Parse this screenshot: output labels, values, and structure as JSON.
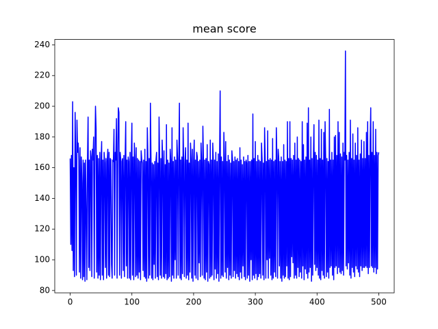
{
  "chart_data": {
    "type": "line",
    "title": "mean score",
    "color": "#0000ff",
    "xlim": [
      -25,
      525
    ],
    "xticks": [
      0,
      100,
      200,
      300,
      400,
      500
    ],
    "ylim": [
      78.5,
      243.5
    ],
    "yticks": [
      80,
      100,
      120,
      140,
      160,
      180,
      200,
      220,
      240
    ],
    "values": [
      166,
      110,
      168,
      106,
      203,
      93,
      160,
      89,
      196,
      165,
      90,
      191,
      170,
      176,
      165,
      92,
      173,
      88,
      167,
      150,
      87,
      165,
      89,
      163,
      86,
      165,
      130,
      87,
      164,
      193,
      95,
      165,
      93,
      171,
      167,
      89,
      172,
      165,
      180,
      88,
      166,
      200,
      185,
      92,
      168,
      88,
      166,
      90,
      170,
      87,
      164,
      177,
      90,
      165,
      87,
      170,
      163,
      95,
      166,
      88,
      164,
      172,
      90,
      170,
      89,
      166,
      165,
      97,
      88,
      165,
      164,
      185,
      90,
      170,
      165,
      192,
      88,
      166,
      199,
      196,
      90,
      170,
      165,
      88,
      164,
      166,
      93,
      168,
      89,
      165,
      190,
      96,
      165,
      88,
      167,
      164,
      88,
      170,
      87,
      165,
      189,
      90,
      167,
      87,
      176,
      165,
      89,
      173,
      90,
      166,
      88,
      165,
      92,
      164,
      87,
      171,
      165,
      163,
      93,
      165,
      89,
      172,
      88,
      164,
      86,
      186,
      165,
      88,
      166,
      90,
      202,
      164,
      88,
      163,
      87,
      162,
      97,
      164,
      88,
      165,
      170,
      89,
      163,
      87,
      193,
      164,
      90,
      166,
      88,
      178,
      164,
      89,
      171,
      88,
      162,
      91,
      188,
      87,
      165,
      88,
      163,
      89,
      172,
      165,
      86,
      186,
      90,
      164,
      88,
      167,
      100,
      165,
      88,
      178,
      166,
      90,
      164,
      202,
      88,
      165,
      87,
      167,
      91,
      186,
      162,
      89,
      164,
      173,
      88,
      165,
      90,
      189,
      87,
      163,
      92,
      176,
      165,
      88,
      172,
      86,
      164,
      178,
      90,
      165,
      88,
      170,
      167,
      87,
      164,
      98,
      165,
      89,
      176,
      163,
      90,
      187,
      164,
      88,
      165,
      87,
      166,
      92,
      175,
      86,
      164,
      162,
      88,
      178,
      89,
      165,
      90,
      176,
      164,
      87,
      165,
      94,
      170,
      88,
      164,
      91,
      169,
      86,
      165,
      210,
      88,
      167,
      90,
      164,
      89,
      183,
      165,
      92,
      177,
      88,
      164,
      95,
      168,
      87,
      165,
      90,
      163,
      88,
      171,
      165,
      89,
      164,
      93,
      167,
      88,
      165,
      91,
      166,
      89,
      164,
      87,
      173,
      92,
      165,
      88,
      162,
      96,
      167,
      89,
      164,
      87,
      165,
      163,
      88,
      168,
      90,
      164,
      86,
      164,
      100,
      165,
      87,
      195,
      90,
      166,
      88,
      177,
      91,
      164,
      87,
      168,
      89,
      165,
      91,
      164,
      88,
      176,
      165,
      90,
      163,
      87,
      186,
      165,
      88,
      164,
      100,
      184,
      88,
      165,
      101,
      166,
      90,
      165,
      87,
      179,
      88,
      164,
      92,
      165,
      89,
      186,
      165,
      88,
      172,
      166,
      96,
      164,
      88,
      167,
      86,
      164,
      90,
      175,
      88,
      165,
      89,
      164,
      96,
      190,
      88,
      166,
      87,
      190,
      89,
      166,
      102,
      165,
      98,
      168,
      88,
      176,
      90,
      165,
      88,
      180,
      95,
      166,
      89,
      165,
      92,
      164,
      88,
      190,
      96,
      175,
      87,
      165,
      94,
      167,
      91,
      189,
      88,
      199,
      92,
      165,
      95,
      180,
      86,
      166,
      90,
      164,
      188,
      97,
      170,
      93,
      168,
      95,
      165,
      90,
      191,
      88,
      166,
      87,
      185,
      93,
      165,
      90,
      183,
      88,
      190,
      165,
      89,
      166,
      92,
      164,
      88,
      198,
      95,
      165,
      96,
      170,
      90,
      165,
      87,
      180,
      95,
      181,
      96,
      168,
      91,
      190,
      95,
      183,
      92,
      169,
      91,
      167,
      93,
      176,
      90,
      170,
      165,
      236,
      96,
      168,
      94,
      165,
      98,
      170,
      90,
      191,
      88,
      166,
      95,
      182,
      92,
      165,
      89,
      176,
      96,
      168,
      94,
      186,
      92,
      165,
      89,
      169,
      96,
      178,
      93,
      166,
      95,
      177,
      95,
      166,
      96,
      183,
      95,
      190,
      91,
      168,
      95,
      175,
      199,
      96,
      170,
      95,
      190,
      92,
      168,
      95,
      185,
      91,
      170,
      94,
      168,
      170
    ]
  }
}
